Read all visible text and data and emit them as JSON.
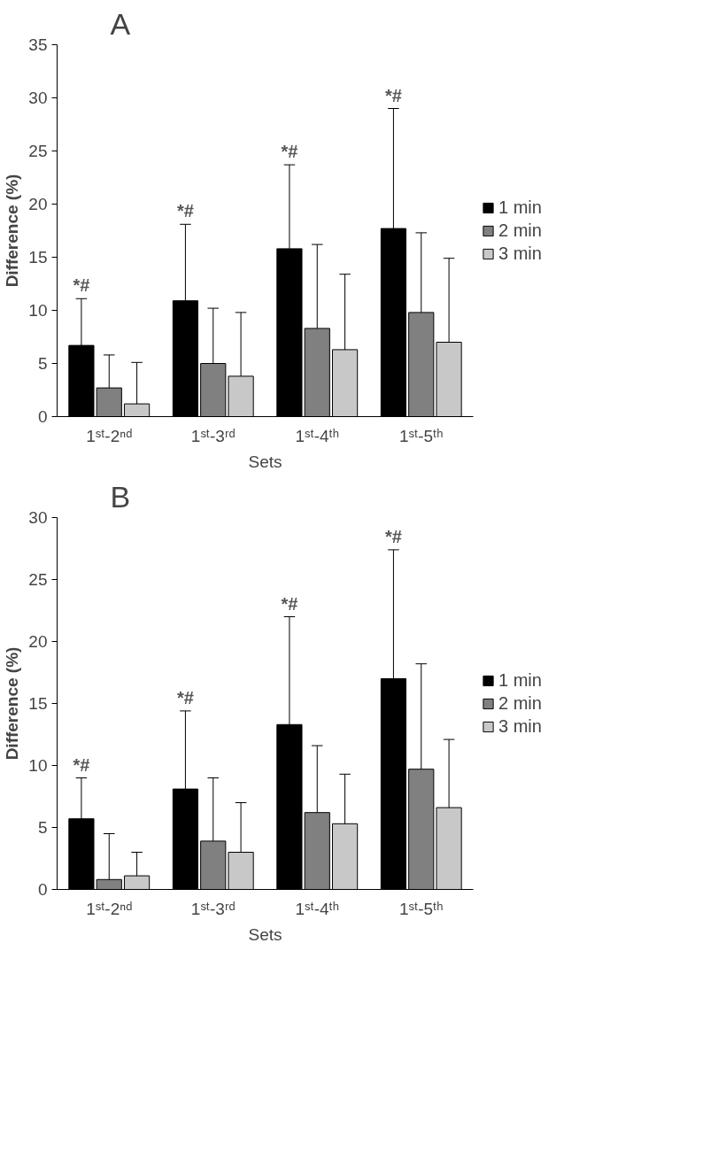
{
  "chart_data": [
    {
      "type": "bar",
      "title": "A",
      "xlabel": "Sets",
      "ylabel": "Difference (%)",
      "categories": [
        "1ˢᵗ-2ⁿᵈ",
        "1ˢᵗ-3ʳᵈ",
        "1ˢᵗ-4ᵗʰ",
        "1ˢᵗ-5ᵗʰ"
      ],
      "series": [
        {
          "name": "1 min",
          "color": "#000000",
          "values": [
            6.7,
            10.9,
            15.8,
            17.7
          ],
          "errors": [
            [
              6.7,
              11.1
            ],
            [
              10.9,
              18.1
            ],
            [
              15.8,
              23.7
            ],
            [
              17.7,
              29.0
            ]
          ]
        },
        {
          "name": "2 min",
          "color": "#808080",
          "values": [
            2.7,
            5.0,
            8.3,
            9.8
          ],
          "errors": [
            [
              2.7,
              5.8
            ],
            [
              5.0,
              10.2
            ],
            [
              8.3,
              16.2
            ],
            [
              9.8,
              17.3
            ]
          ]
        },
        {
          "name": "3 min",
          "color": "#c8c8c8",
          "values": [
            1.2,
            3.8,
            6.3,
            7.0
          ],
          "errors": [
            [
              1.2,
              5.1
            ],
            [
              3.8,
              9.8
            ],
            [
              6.3,
              13.4
            ],
            [
              7.0,
              14.9
            ]
          ]
        }
      ],
      "annotations": [
        "*#",
        "*#",
        "*#",
        "*#"
      ],
      "ylim": [
        0,
        35
      ],
      "yticks": [
        0,
        5,
        10,
        15,
        20,
        25,
        30,
        35
      ],
      "grid": false,
      "legend": "right"
    },
    {
      "type": "bar",
      "title": "B",
      "xlabel": "Sets",
      "ylabel": "Difference (%)",
      "categories": [
        "1ˢᵗ-2ⁿᵈ",
        "1ˢᵗ-3ʳᵈ",
        "1ˢᵗ-4ᵗʰ",
        "1ˢᵗ-5ᵗʰ"
      ],
      "series": [
        {
          "name": "1 min",
          "color": "#000000",
          "values": [
            5.7,
            8.1,
            13.3,
            17.0
          ],
          "errors": [
            [
              5.7,
              9.0
            ],
            [
              8.1,
              14.4
            ],
            [
              13.3,
              22.0
            ],
            [
              17.0,
              27.4
            ]
          ]
        },
        {
          "name": "2 min",
          "color": "#808080",
          "values": [
            0.8,
            3.9,
            6.2,
            9.7
          ],
          "errors": [
            [
              0.8,
              4.5
            ],
            [
              3.9,
              9.0
            ],
            [
              6.2,
              11.6
            ],
            [
              9.7,
              18.2
            ]
          ]
        },
        {
          "name": "3 min",
          "color": "#c8c8c8",
          "values": [
            1.1,
            3.0,
            5.3,
            6.6
          ],
          "errors": [
            [
              1.1,
              3.0
            ],
            [
              3.0,
              7.0
            ],
            [
              5.3,
              9.3
            ],
            [
              6.6,
              12.1
            ]
          ]
        }
      ],
      "annotations": [
        "*#",
        "*#",
        "*#",
        "*#"
      ],
      "ylim": [
        0,
        30
      ],
      "yticks": [
        0,
        5,
        10,
        15,
        20,
        25,
        30
      ],
      "grid": false,
      "legend": "right"
    }
  ]
}
